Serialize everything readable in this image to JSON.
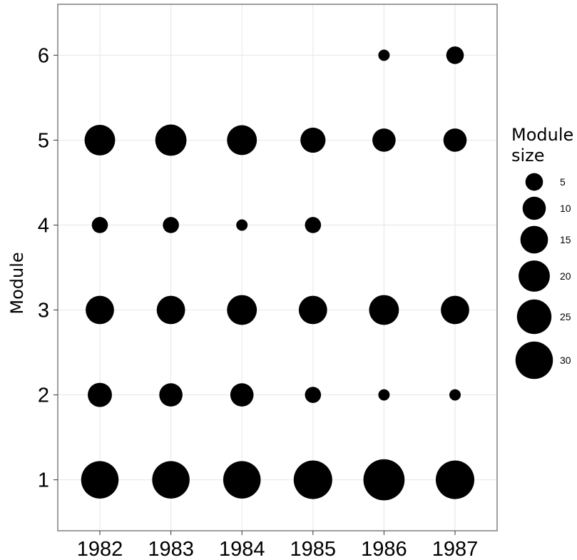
{
  "chart_data": {
    "type": "scatter",
    "title": "",
    "xlabel": "",
    "ylabel": "Module",
    "x_categories": [
      "1982",
      "1983",
      "1984",
      "1985",
      "1986",
      "1987"
    ],
    "y_ticks": [
      "1",
      "2",
      "3",
      "4",
      "5",
      "6"
    ],
    "ylim": [
      0.4,
      6.6
    ],
    "grid": true,
    "legend": {
      "title": "Module size",
      "title_lines": [
        "Module",
        "size"
      ],
      "position": "right",
      "entries": [
        {
          "label": "5",
          "size": 5
        },
        {
          "label": "10",
          "size": 10
        },
        {
          "label": "15",
          "size": 15
        },
        {
          "label": "20",
          "size": 20
        },
        {
          "label": "25",
          "size": 25
        },
        {
          "label": "30",
          "size": 30
        }
      ]
    },
    "points": [
      {
        "year": "1982",
        "module": 1,
        "size": 30
      },
      {
        "year": "1982",
        "module": 2,
        "size": 11
      },
      {
        "year": "1982",
        "module": 3,
        "size": 16
      },
      {
        "year": "1982",
        "module": 4,
        "size": 4
      },
      {
        "year": "1982",
        "module": 5,
        "size": 19
      },
      {
        "year": "1983",
        "module": 1,
        "size": 30
      },
      {
        "year": "1983",
        "module": 2,
        "size": 10
      },
      {
        "year": "1983",
        "module": 3,
        "size": 16
      },
      {
        "year": "1983",
        "module": 4,
        "size": 4
      },
      {
        "year": "1983",
        "module": 5,
        "size": 20
      },
      {
        "year": "1984",
        "module": 1,
        "size": 30
      },
      {
        "year": "1984",
        "module": 2,
        "size": 10
      },
      {
        "year": "1984",
        "module": 3,
        "size": 18
      },
      {
        "year": "1984",
        "module": 4,
        "size": 1.5
      },
      {
        "year": "1984",
        "module": 5,
        "size": 18
      },
      {
        "year": "1985",
        "module": 1,
        "size": 32
      },
      {
        "year": "1985",
        "module": 2,
        "size": 4
      },
      {
        "year": "1985",
        "module": 3,
        "size": 16
      },
      {
        "year": "1985",
        "module": 4,
        "size": 4
      },
      {
        "year": "1985",
        "module": 5,
        "size": 12
      },
      {
        "year": "1986",
        "module": 1,
        "size": 37
      },
      {
        "year": "1986",
        "module": 2,
        "size": 1.5
      },
      {
        "year": "1986",
        "module": 3,
        "size": 18
      },
      {
        "year": "1986",
        "module": 5,
        "size": 10
      },
      {
        "year": "1986",
        "module": 6,
        "size": 1.5
      },
      {
        "year": "1987",
        "module": 1,
        "size": 32
      },
      {
        "year": "1987",
        "module": 2,
        "size": 1.5
      },
      {
        "year": "1987",
        "module": 3,
        "size": 16
      },
      {
        "year": "1987",
        "module": 5,
        "size": 10
      },
      {
        "year": "1987",
        "module": 6,
        "size": 5
      }
    ]
  }
}
